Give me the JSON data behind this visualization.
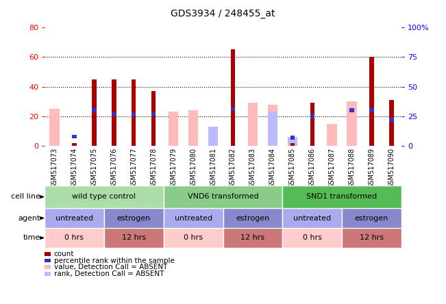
{
  "title": "GDS3934 / 248455_at",
  "samples": [
    "GSM517073",
    "GSM517074",
    "GSM517075",
    "GSM517076",
    "GSM517077",
    "GSM517078",
    "GSM517079",
    "GSM517080",
    "GSM517081",
    "GSM517082",
    "GSM517083",
    "GSM517084",
    "GSM517085",
    "GSM517086",
    "GSM517087",
    "GSM517088",
    "GSM517089",
    "GSM517090"
  ],
  "count": [
    0,
    2,
    45,
    45,
    45,
    37,
    0,
    0,
    0,
    65,
    0,
    0,
    2,
    29,
    0,
    0,
    60,
    31
  ],
  "percentile": [
    0,
    8,
    30,
    27,
    27,
    27,
    0,
    0,
    0,
    31,
    0,
    0,
    7,
    25,
    0,
    30,
    30,
    22
  ],
  "value_absent": [
    25,
    0,
    0,
    0,
    0,
    0,
    23,
    24,
    10,
    0,
    29,
    28,
    0,
    0,
    15,
    30,
    0,
    0
  ],
  "rank_absent": [
    0,
    0,
    0,
    0,
    0,
    0,
    0,
    0,
    13,
    0,
    0,
    23,
    6,
    0,
    0,
    0,
    0,
    0
  ],
  "ylim_left": [
    0,
    80
  ],
  "ylim_right": [
    0,
    100
  ],
  "yticks_left": [
    0,
    20,
    40,
    60,
    80
  ],
  "yticks_right": [
    0,
    25,
    50,
    75,
    100
  ],
  "ytick_labels_right": [
    "0",
    "25",
    "50",
    "75",
    "100%"
  ],
  "color_count": "#aa0000",
  "color_percentile": "#3333cc",
  "color_value_absent": "#ffbbbb",
  "color_rank_absent": "#bbbbff",
  "cell_line_groups": [
    {
      "label": "wild type control",
      "start": 0,
      "end": 6,
      "color": "#aaddaa"
    },
    {
      "label": "VND6 transformed",
      "start": 6,
      "end": 12,
      "color": "#88cc88"
    },
    {
      "label": "SND1 transformed",
      "start": 12,
      "end": 18,
      "color": "#55bb55"
    }
  ],
  "agent_groups": [
    {
      "label": "untreated",
      "start": 0,
      "end": 3,
      "color": "#aaaaee"
    },
    {
      "label": "estrogen",
      "start": 3,
      "end": 6,
      "color": "#8888cc"
    },
    {
      "label": "untreated",
      "start": 6,
      "end": 9,
      "color": "#aaaaee"
    },
    {
      "label": "estrogen",
      "start": 9,
      "end": 12,
      "color": "#8888cc"
    },
    {
      "label": "untreated",
      "start": 12,
      "end": 15,
      "color": "#aaaaee"
    },
    {
      "label": "estrogen",
      "start": 15,
      "end": 18,
      "color": "#8888cc"
    }
  ],
  "time_groups": [
    {
      "label": "0 hrs",
      "start": 0,
      "end": 3,
      "color": "#ffcccc"
    },
    {
      "label": "12 hrs",
      "start": 3,
      "end": 6,
      "color": "#cc7777"
    },
    {
      "label": "0 hrs",
      "start": 6,
      "end": 9,
      "color": "#ffcccc"
    },
    {
      "label": "12 hrs",
      "start": 9,
      "end": 12,
      "color": "#cc7777"
    },
    {
      "label": "0 hrs",
      "start": 12,
      "end": 15,
      "color": "#ffcccc"
    },
    {
      "label": "12 hrs",
      "start": 15,
      "end": 18,
      "color": "#cc7777"
    }
  ],
  "legend_items": [
    {
      "label": "count",
      "color": "#aa0000"
    },
    {
      "label": "percentile rank within the sample",
      "color": "#3333cc"
    },
    {
      "label": "value, Detection Call = ABSENT",
      "color": "#ffbbbb"
    },
    {
      "label": "rank, Detection Call = ABSENT",
      "color": "#bbbbff"
    }
  ],
  "background_color": "#ffffff",
  "plot_bg": "#ffffff",
  "xtick_bg": "#cccccc"
}
